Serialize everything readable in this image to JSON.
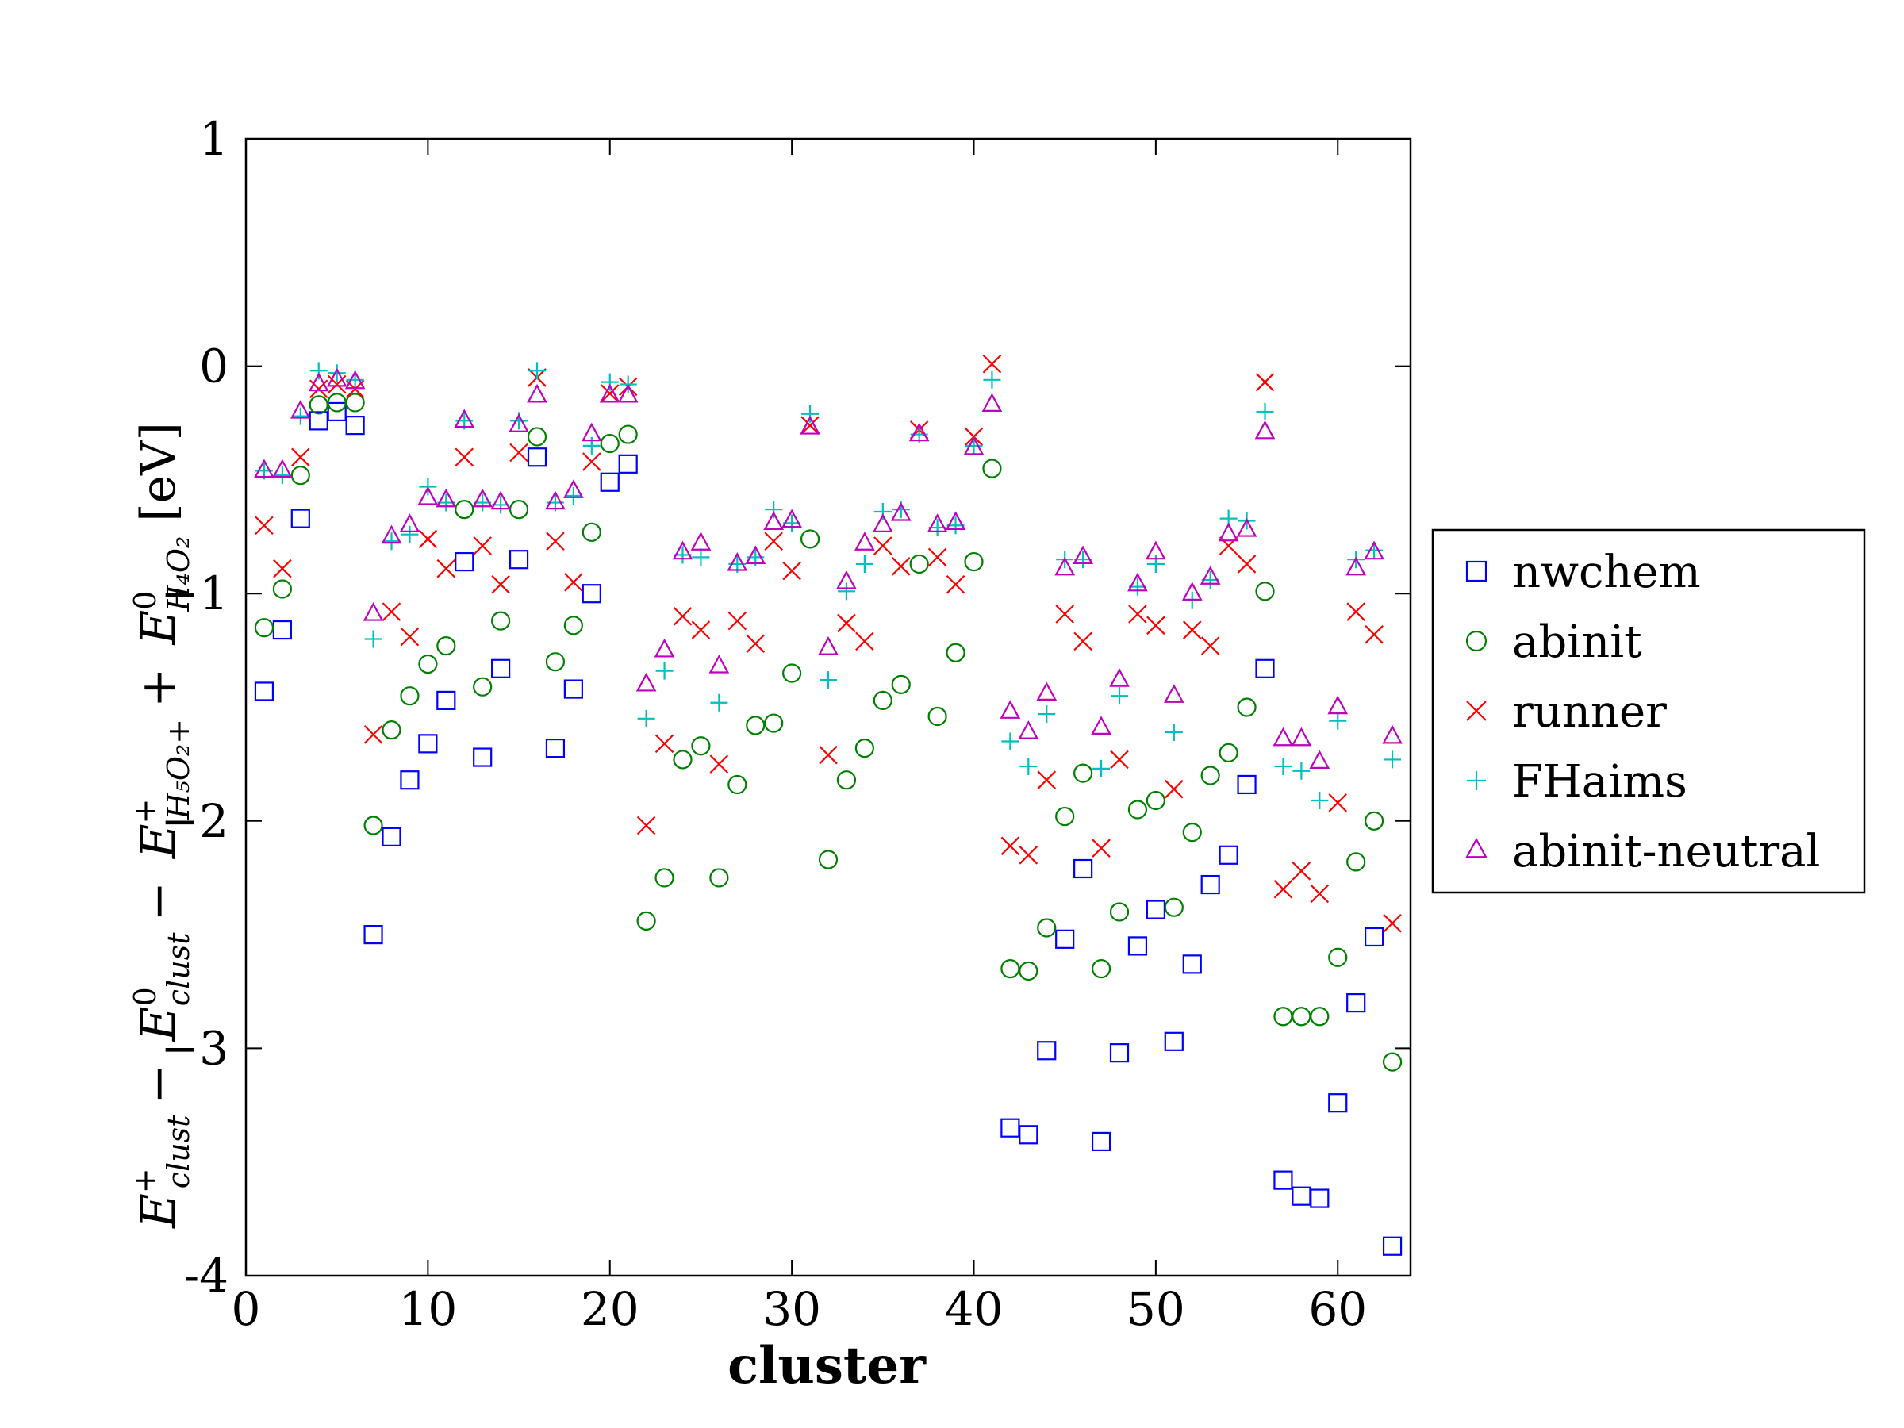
{
  "chart_data": {
    "type": "scatter",
    "title": "",
    "xlabel": "cluster",
    "ylabel": "E_clust^+ − E_clust^0 − E_{H5O2+}^+ + E_{H4O2}^0 [eV]",
    "ylabel_parts": {
      "a": "E",
      "a_sup": "+",
      "a_sub": "clust",
      "op1": "−",
      "b": "E",
      "b_sup": "0",
      "b_sub": "clust",
      "op2": "−",
      "c": "E",
      "c_sup": "+",
      "c_sub": "H₅O₂+",
      "op3": "+",
      "d": "E",
      "d_sup": "0",
      "d_sub": "H₄O₂",
      "unit": "[eV]"
    },
    "xlim": [
      0,
      64
    ],
    "ylim": [
      -4,
      1
    ],
    "x_ticks": [
      0,
      10,
      20,
      30,
      40,
      50,
      60
    ],
    "y_ticks": [
      1,
      0,
      -1,
      -2,
      -3,
      -4
    ],
    "x_tick_labels": [
      "0",
      "10",
      "20",
      "30",
      "40",
      "50",
      "60"
    ],
    "y_tick_labels": [
      "1",
      "0",
      "−1",
      "−2",
      "−3",
      "-4"
    ],
    "grid": false,
    "legend_position": "right-outside",
    "x": [
      1,
      2,
      3,
      4,
      5,
      6,
      7,
      8,
      9,
      10,
      11,
      12,
      13,
      14,
      15,
      16,
      17,
      18,
      19,
      20,
      21,
      22,
      23,
      24,
      25,
      26,
      27,
      28,
      29,
      30,
      31,
      32,
      33,
      34,
      35,
      36,
      37,
      38,
      39,
      40,
      41,
      42,
      43,
      44,
      45,
      46,
      47,
      48,
      49,
      50,
      51,
      52,
      53,
      54,
      55,
      56,
      57,
      58,
      59,
      60,
      61,
      62,
      63
    ],
    "series": [
      {
        "name": "nwchem",
        "marker": "square",
        "color": "#0000ff",
        "points": [
          [
            1,
            -1.43
          ],
          [
            2,
            -1.16
          ],
          [
            3,
            -0.67
          ],
          [
            4,
            -0.24
          ],
          [
            5,
            -0.2
          ],
          [
            6,
            -0.26
          ],
          [
            7,
            -2.5
          ],
          [
            8,
            -2.07
          ],
          [
            9,
            -1.82
          ],
          [
            10,
            -1.66
          ],
          [
            11,
            -1.47
          ],
          [
            12,
            -0.86
          ],
          [
            13,
            -1.72
          ],
          [
            14,
            -1.33
          ],
          [
            15,
            -0.85
          ],
          [
            16,
            -0.4
          ],
          [
            17,
            -1.68
          ],
          [
            18,
            -1.42
          ],
          [
            19,
            -1.0
          ],
          [
            20,
            -0.51
          ],
          [
            21,
            -0.43
          ],
          [
            42,
            -3.35
          ],
          [
            43,
            -3.38
          ],
          [
            44,
            -3.01
          ],
          [
            45,
            -2.52
          ],
          [
            46,
            -2.21
          ],
          [
            47,
            -3.41
          ],
          [
            48,
            -3.02
          ],
          [
            49,
            -2.55
          ],
          [
            50,
            -2.39
          ],
          [
            51,
            -2.97
          ],
          [
            52,
            -2.63
          ],
          [
            53,
            -2.28
          ],
          [
            54,
            -2.15
          ],
          [
            55,
            -1.84
          ],
          [
            56,
            -1.33
          ],
          [
            57,
            -3.58
          ],
          [
            58,
            -3.65
          ],
          [
            59,
            -3.66
          ],
          [
            60,
            -3.24
          ],
          [
            61,
            -2.8
          ],
          [
            62,
            -2.51
          ],
          [
            63,
            -3.87
          ]
        ]
      },
      {
        "name": "abinit",
        "marker": "circle",
        "color": "#008000",
        "points": [
          [
            1,
            -1.15
          ],
          [
            2,
            -0.98
          ],
          [
            3,
            -0.48
          ],
          [
            4,
            -0.17
          ],
          [
            5,
            -0.16
          ],
          [
            6,
            -0.16
          ],
          [
            7,
            -2.02
          ],
          [
            8,
            -1.6
          ],
          [
            9,
            -1.45
          ],
          [
            10,
            -1.31
          ],
          [
            11,
            -1.23
          ],
          [
            12,
            -0.63
          ],
          [
            13,
            -1.41
          ],
          [
            14,
            -1.12
          ],
          [
            15,
            -0.63
          ],
          [
            16,
            -0.31
          ],
          [
            17,
            -1.3
          ],
          [
            18,
            -1.14
          ],
          [
            19,
            -0.73
          ],
          [
            20,
            -0.34
          ],
          [
            21,
            -0.3
          ],
          [
            22,
            -2.44
          ],
          [
            23,
            -2.25
          ],
          [
            24,
            -1.73
          ],
          [
            25,
            -1.67
          ],
          [
            26,
            -2.25
          ],
          [
            27,
            -1.84
          ],
          [
            28,
            -1.58
          ],
          [
            29,
            -1.57
          ],
          [
            30,
            -1.35
          ],
          [
            31,
            -0.76
          ],
          [
            32,
            -2.17
          ],
          [
            33,
            -1.82
          ],
          [
            34,
            -1.68
          ],
          [
            35,
            -1.47
          ],
          [
            36,
            -1.4
          ],
          [
            37,
            -0.87
          ],
          [
            38,
            -1.54
          ],
          [
            39,
            -1.26
          ],
          [
            40,
            -0.86
          ],
          [
            41,
            -0.45
          ],
          [
            42,
            -2.65
          ],
          [
            43,
            -2.66
          ],
          [
            44,
            -2.47
          ],
          [
            45,
            -1.98
          ],
          [
            46,
            -1.79
          ],
          [
            47,
            -2.65
          ],
          [
            48,
            -2.4
          ],
          [
            49,
            -1.95
          ],
          [
            50,
            -1.91
          ],
          [
            51,
            -2.38
          ],
          [
            52,
            -2.05
          ],
          [
            53,
            -1.8
          ],
          [
            54,
            -1.7
          ],
          [
            55,
            -1.5
          ],
          [
            56,
            -0.99
          ],
          [
            57,
            -2.86
          ],
          [
            58,
            -2.86
          ],
          [
            59,
            -2.86
          ],
          [
            60,
            -2.6
          ],
          [
            61,
            -2.18
          ],
          [
            62,
            -2.0
          ],
          [
            63,
            -3.06
          ]
        ]
      },
      {
        "name": "runner",
        "marker": "x",
        "color": "#ff0000",
        "points": [
          [
            1,
            -0.7
          ],
          [
            2,
            -0.89
          ],
          [
            3,
            -0.4
          ],
          [
            4,
            -0.1
          ],
          [
            5,
            -0.08
          ],
          [
            6,
            -0.1
          ],
          [
            7,
            -1.62
          ],
          [
            8,
            -1.08
          ],
          [
            9,
            -1.19
          ],
          [
            10,
            -0.76
          ],
          [
            11,
            -0.89
          ],
          [
            12,
            -0.4
          ],
          [
            13,
            -0.79
          ],
          [
            14,
            -0.96
          ],
          [
            15,
            -0.38
          ],
          [
            16,
            -0.05
          ],
          [
            17,
            -0.77
          ],
          [
            18,
            -0.95
          ],
          [
            19,
            -0.42
          ],
          [
            20,
            -0.12
          ],
          [
            21,
            -0.09
          ],
          [
            22,
            -2.02
          ],
          [
            23,
            -1.66
          ],
          [
            24,
            -1.1
          ],
          [
            25,
            -1.16
          ],
          [
            26,
            -1.75
          ],
          [
            27,
            -1.12
          ],
          [
            28,
            -1.22
          ],
          [
            29,
            -0.77
          ],
          [
            30,
            -0.9
          ],
          [
            31,
            -0.26
          ],
          [
            32,
            -1.71
          ],
          [
            33,
            -1.13
          ],
          [
            34,
            -1.21
          ],
          [
            35,
            -0.79
          ],
          [
            36,
            -0.88
          ],
          [
            37,
            -0.28
          ],
          [
            38,
            -0.84
          ],
          [
            39,
            -0.96
          ],
          [
            40,
            -0.31
          ],
          [
            41,
            0.01
          ],
          [
            42,
            -2.11
          ],
          [
            43,
            -2.15
          ],
          [
            44,
            -1.82
          ],
          [
            45,
            -1.09
          ],
          [
            46,
            -1.21
          ],
          [
            47,
            -2.12
          ],
          [
            48,
            -1.73
          ],
          [
            49,
            -1.09
          ],
          [
            50,
            -1.14
          ],
          [
            51,
            -1.86
          ],
          [
            52,
            -1.16
          ],
          [
            53,
            -1.23
          ],
          [
            54,
            -0.79
          ],
          [
            55,
            -0.87
          ],
          [
            56,
            -0.07
          ],
          [
            57,
            -2.3
          ],
          [
            58,
            -2.22
          ],
          [
            59,
            -2.32
          ],
          [
            60,
            -1.92
          ],
          [
            61,
            -1.08
          ],
          [
            62,
            -1.18
          ],
          [
            63,
            -2.45
          ]
        ]
      },
      {
        "name": "FHaims",
        "marker": "plus",
        "color": "#00bfbf",
        "points": [
          [
            1,
            -0.46
          ],
          [
            2,
            -0.48
          ],
          [
            3,
            -0.22
          ],
          [
            4,
            -0.02
          ],
          [
            5,
            -0.03
          ],
          [
            6,
            -0.06
          ],
          [
            7,
            -1.2
          ],
          [
            8,
            -0.77
          ],
          [
            9,
            -0.74
          ],
          [
            10,
            -0.53
          ],
          [
            11,
            -0.6
          ],
          [
            12,
            -0.24
          ],
          [
            13,
            -0.6
          ],
          [
            14,
            -0.61
          ],
          [
            15,
            -0.24
          ],
          [
            16,
            -0.02
          ],
          [
            17,
            -0.6
          ],
          [
            18,
            -0.57
          ],
          [
            19,
            -0.35
          ],
          [
            20,
            -0.07
          ],
          [
            21,
            -0.08
          ],
          [
            22,
            -1.55
          ],
          [
            23,
            -1.34
          ],
          [
            24,
            -0.83
          ],
          [
            25,
            -0.84
          ],
          [
            26,
            -1.48
          ],
          [
            27,
            -0.87
          ],
          [
            28,
            -0.84
          ],
          [
            29,
            -0.63
          ],
          [
            30,
            -0.69
          ],
          [
            31,
            -0.21
          ],
          [
            32,
            -1.38
          ],
          [
            33,
            -0.99
          ],
          [
            34,
            -0.87
          ],
          [
            35,
            -0.64
          ],
          [
            36,
            -0.63
          ],
          [
            37,
            -0.3
          ],
          [
            38,
            -0.71
          ],
          [
            39,
            -0.7
          ],
          [
            40,
            -0.35
          ],
          [
            41,
            -0.06
          ],
          [
            42,
            -1.65
          ],
          [
            43,
            -1.76
          ],
          [
            44,
            -1.53
          ],
          [
            45,
            -0.85
          ],
          [
            46,
            -0.85
          ],
          [
            47,
            -1.77
          ],
          [
            48,
            -1.45
          ],
          [
            49,
            -0.97
          ],
          [
            50,
            -0.87
          ],
          [
            51,
            -1.61
          ],
          [
            52,
            -1.03
          ],
          [
            53,
            -0.94
          ],
          [
            54,
            -0.67
          ],
          [
            55,
            -0.68
          ],
          [
            56,
            -0.2
          ],
          [
            57,
            -1.76
          ],
          [
            58,
            -1.78
          ],
          [
            59,
            -1.91
          ],
          [
            60,
            -1.56
          ],
          [
            61,
            -0.85
          ],
          [
            62,
            -0.81
          ],
          [
            63,
            -1.73
          ]
        ]
      },
      {
        "name": "abinit-neutral",
        "marker": "triangle",
        "color": "#bf00bf",
        "points": [
          [
            1,
            -0.46
          ],
          [
            2,
            -0.46
          ],
          [
            3,
            -0.2
          ],
          [
            4,
            -0.08
          ],
          [
            5,
            -0.06
          ],
          [
            6,
            -0.07
          ],
          [
            7,
            -1.09
          ],
          [
            8,
            -0.75
          ],
          [
            9,
            -0.7
          ],
          [
            10,
            -0.58
          ],
          [
            11,
            -0.59
          ],
          [
            12,
            -0.24
          ],
          [
            13,
            -0.59
          ],
          [
            14,
            -0.6
          ],
          [
            15,
            -0.26
          ],
          [
            16,
            -0.13
          ],
          [
            17,
            -0.6
          ],
          [
            18,
            -0.55
          ],
          [
            19,
            -0.3
          ],
          [
            20,
            -0.13
          ],
          [
            21,
            -0.13
          ],
          [
            22,
            -1.4
          ],
          [
            23,
            -1.25
          ],
          [
            24,
            -0.82
          ],
          [
            25,
            -0.78
          ],
          [
            26,
            -1.32
          ],
          [
            27,
            -0.87
          ],
          [
            28,
            -0.84
          ],
          [
            29,
            -0.69
          ],
          [
            30,
            -0.68
          ],
          [
            31,
            -0.27
          ],
          [
            32,
            -1.24
          ],
          [
            33,
            -0.95
          ],
          [
            34,
            -0.78
          ],
          [
            35,
            -0.7
          ],
          [
            36,
            -0.65
          ],
          [
            37,
            -0.3
          ],
          [
            38,
            -0.7
          ],
          [
            39,
            -0.69
          ],
          [
            40,
            -0.36
          ],
          [
            41,
            -0.17
          ],
          [
            42,
            -1.52
          ],
          [
            43,
            -1.61
          ],
          [
            44,
            -1.44
          ],
          [
            45,
            -0.89
          ],
          [
            46,
            -0.84
          ],
          [
            47,
            -1.59
          ],
          [
            48,
            -1.38
          ],
          [
            49,
            -0.96
          ],
          [
            50,
            -0.82
          ],
          [
            51,
            -1.45
          ],
          [
            52,
            -1.0
          ],
          [
            53,
            -0.93
          ],
          [
            54,
            -0.74
          ],
          [
            55,
            -0.72
          ],
          [
            56,
            -0.29
          ],
          [
            57,
            -1.64
          ],
          [
            58,
            -1.64
          ],
          [
            59,
            -1.74
          ],
          [
            60,
            -1.5
          ],
          [
            61,
            -0.89
          ],
          [
            62,
            -0.82
          ],
          [
            63,
            -1.63
          ]
        ]
      }
    ]
  }
}
